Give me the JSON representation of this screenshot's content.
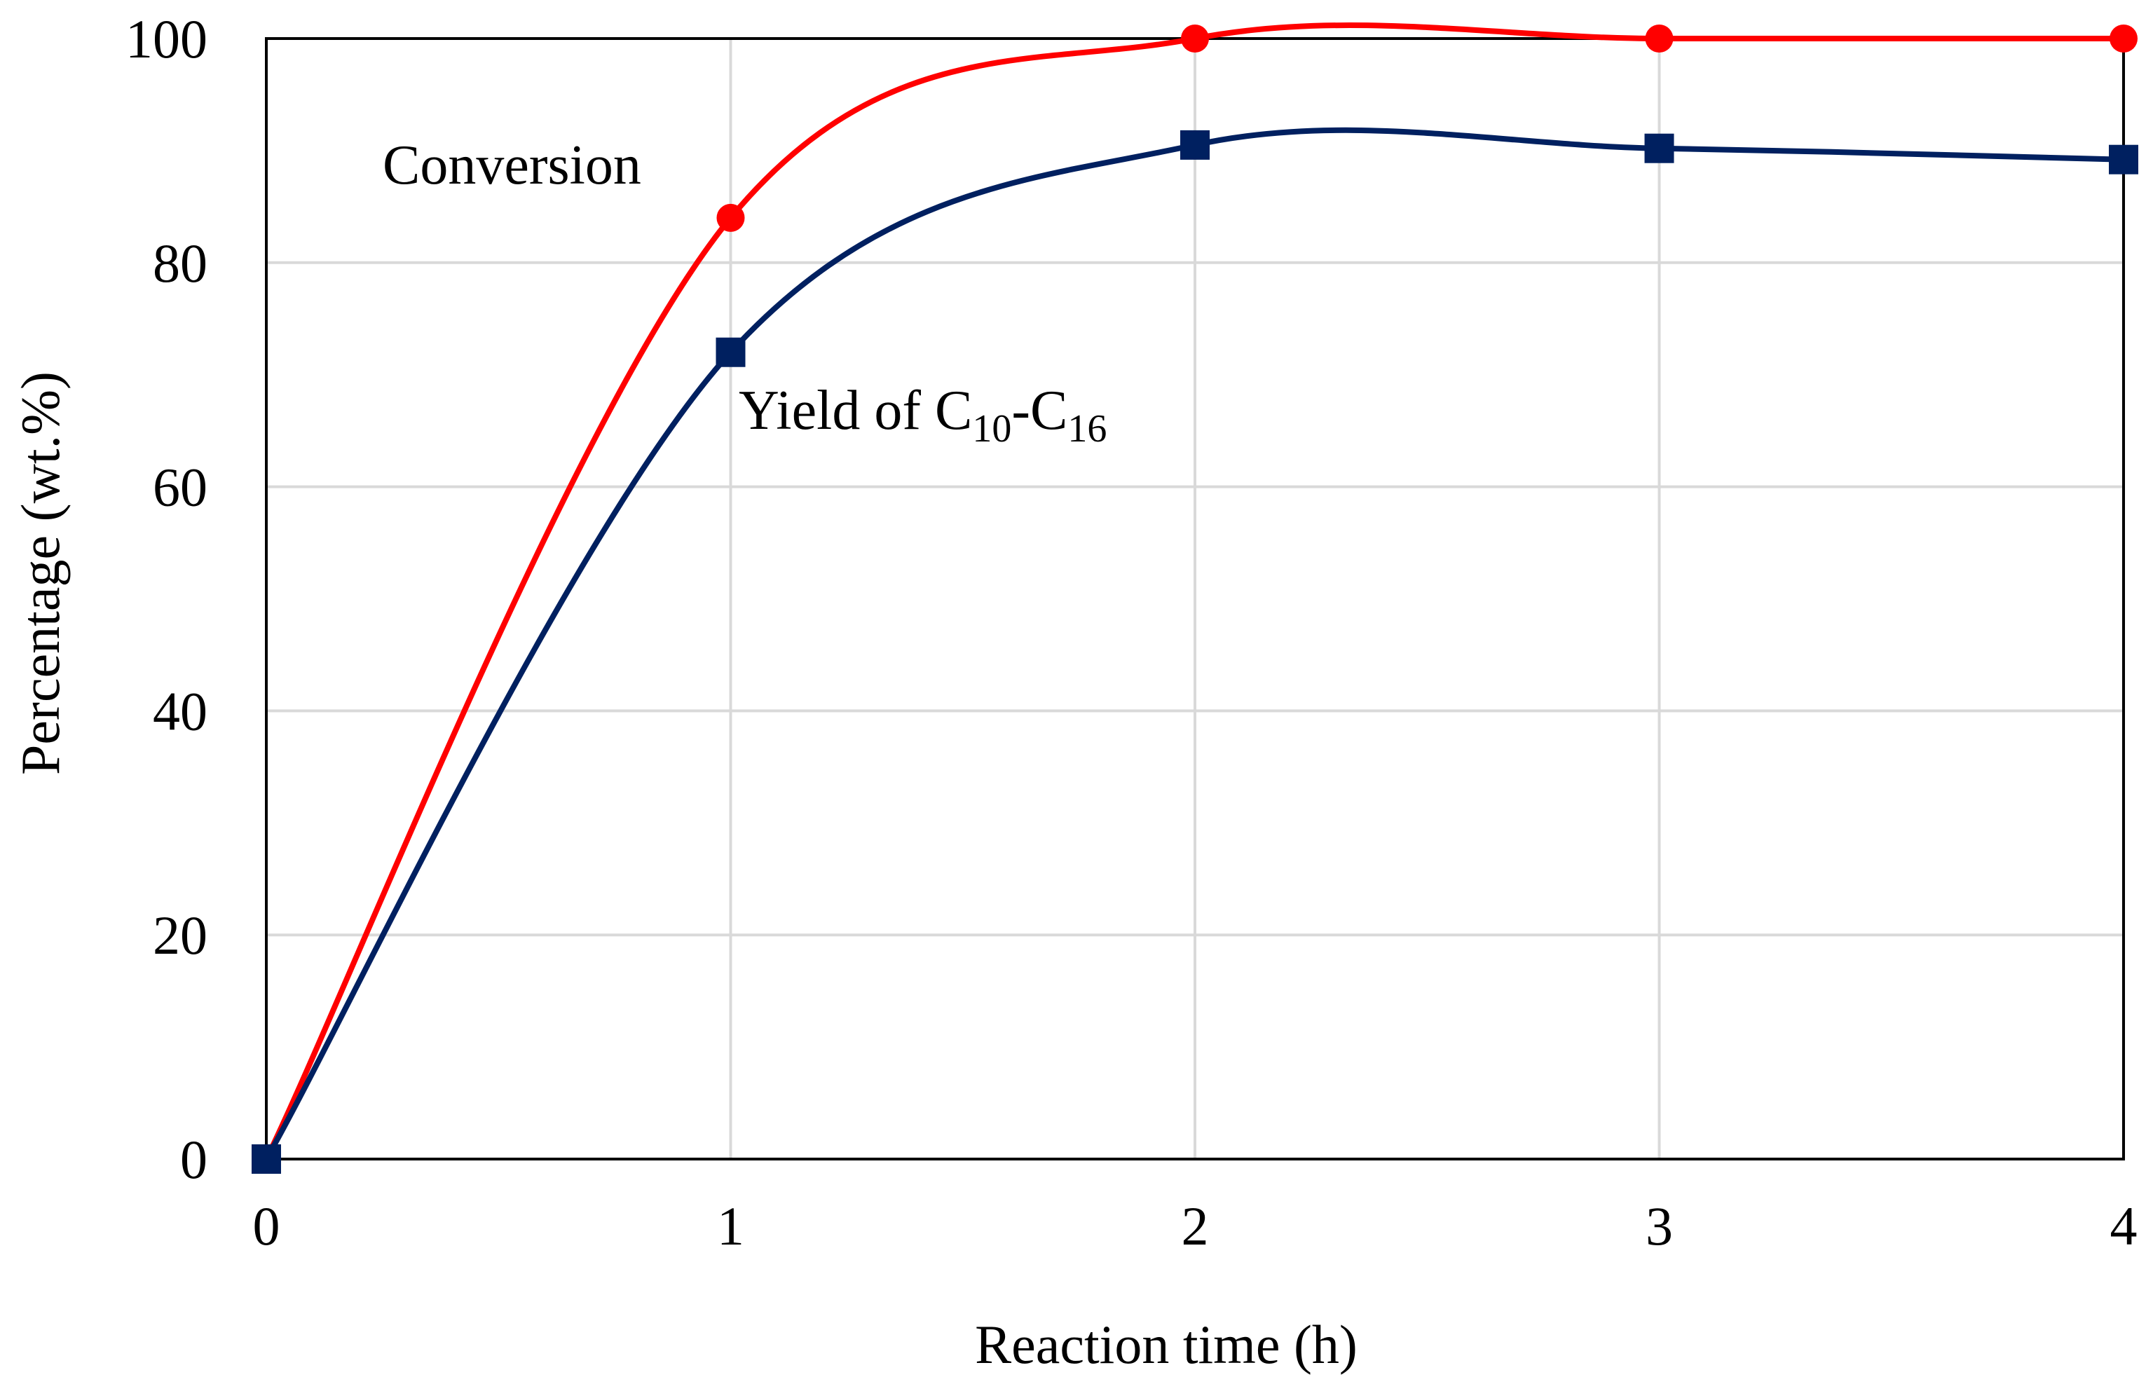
{
  "chart_data": {
    "type": "line",
    "title": "",
    "xlabel": "Reaction time (h)",
    "ylabel": "Percentage (wt.%)",
    "xlim": [
      0,
      4
    ],
    "ylim": [
      0,
      100
    ],
    "x_ticks": [
      "0",
      "1",
      "2",
      "3",
      "4"
    ],
    "y_ticks": [
      "0",
      "20",
      "40",
      "60",
      "80",
      "100"
    ],
    "grid": true,
    "smooth": true,
    "x": [
      0,
      1,
      2,
      3,
      4
    ],
    "series": [
      {
        "name": "Conversion",
        "values": [
          0,
          84,
          100,
          100,
          100
        ],
        "color": "#ff0000",
        "marker": "circle"
      },
      {
        "name": "Yield of C10-C16",
        "values": [
          0,
          72,
          90.5,
          90.2,
          89.2
        ],
        "color": "#002060",
        "marker": "square"
      }
    ],
    "annotations": {
      "conversion": "Conversion",
      "yield_prefix": "Yield of C",
      "yield_sub1": "10",
      "yield_dash": "-C",
      "yield_sub2": "16"
    }
  }
}
